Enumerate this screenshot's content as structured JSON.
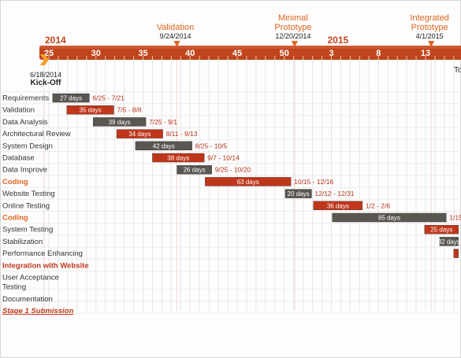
{
  "chart_data": {
    "type": "gantt",
    "timeline": {
      "years": [
        {
          "label": "2014",
          "week": 25
        },
        {
          "label": "2015",
          "week": 55
        }
      ],
      "ticks": [
        {
          "label": "25",
          "week": 25
        },
        {
          "label": "30",
          "week": 30
        },
        {
          "label": "35",
          "week": 35
        },
        {
          "label": "40",
          "week": 40
        },
        {
          "label": "45",
          "week": 45
        },
        {
          "label": "50",
          "week": 50
        },
        {
          "label": "3",
          "week": 55
        },
        {
          "label": "8",
          "week": 60
        },
        {
          "label": "13",
          "week": 65
        }
      ],
      "visible_range_weeks": [
        24.2,
        68.5
      ]
    },
    "milestones": [
      {
        "name": "Validation",
        "date": "9/24/2014",
        "week": 38.6
      },
      {
        "name": "Minimal\nPrototype",
        "date": "12/20/2014",
        "week": 51.1
      },
      {
        "name": "Integrated\nPrototype",
        "date": "4/1/2015",
        "week": 65.6
      }
    ],
    "start_marker": {
      "name": "Kick-Off",
      "date": "6/18/2014",
      "week": 24.4
    },
    "cutoff_label": "To",
    "tasks": [
      {
        "name": "Requirements",
        "duration": "27 days",
        "dates": "6/25 - 7/21",
        "start_week": 25.4,
        "end_week": 29.3,
        "color": "#5a5650",
        "phase": false
      },
      {
        "name": "Validation",
        "duration": "35 days",
        "dates": "7/5 - 8/8",
        "start_week": 26.9,
        "end_week": 31.9,
        "color": "#c0361a",
        "phase": false
      },
      {
        "name": "Data Analysis",
        "duration": "39 days",
        "dates": "7/25 - 9/1",
        "start_week": 29.7,
        "end_week": 35.3,
        "color": "#5a5650",
        "phase": false
      },
      {
        "name": "Architectural Review",
        "duration": "34 days",
        "dates": "8/11 - 9/13",
        "start_week": 32.2,
        "end_week": 37.1,
        "color": "#c0361a",
        "phase": false
      },
      {
        "name": "System Design",
        "duration": "42 days",
        "dates": "8/25 - 10/5",
        "start_week": 34.2,
        "end_week": 40.2,
        "color": "#5a5650",
        "phase": false
      },
      {
        "name": "Database",
        "duration": "38 days",
        "dates": "9/7 - 10/14",
        "start_week": 36.0,
        "end_week": 41.5,
        "color": "#c0361a",
        "phase": false
      },
      {
        "name": "Data Improve",
        "duration": "26 days",
        "dates": "9/25 - 10/20",
        "start_week": 38.6,
        "end_week": 42.3,
        "color": "#5a5650",
        "phase": false
      },
      {
        "name": "Coding",
        "duration": "63 days",
        "dates": "10/15 - 12/16",
        "start_week": 41.6,
        "end_week": 50.7,
        "color": "#c0361a",
        "phase": true
      },
      {
        "name": "Website Testing",
        "duration": "20 days",
        "dates": "12/12 - 12/31",
        "start_week": 50.1,
        "end_week": 52.9,
        "color": "#5a5650",
        "phase": false
      },
      {
        "name": "Online Testing",
        "duration": "36 days",
        "dates": "1/2 - 2/6",
        "start_week": 53.1,
        "end_week": 58.3,
        "color": "#c0361a",
        "phase": false
      },
      {
        "name": "Coding",
        "duration": "85 days",
        "dates": "1/15",
        "start_week": 55.1,
        "end_week": 67.2,
        "color": "#5a5650",
        "phase": true
      },
      {
        "name": "System Testing",
        "duration": "25 days",
        "dates": "",
        "start_week": 64.9,
        "end_week": 68.5,
        "color": "#c0361a",
        "phase": false
      },
      {
        "name": "Stabilization",
        "duration": "32 days",
        "dates": "",
        "start_week": 66.5,
        "end_week": 68.5,
        "color": "#5a5650",
        "phase": false
      },
      {
        "name": "Performance Enhancing",
        "duration": "",
        "dates": "",
        "start_week": 68.0,
        "end_week": 68.5,
        "color": "#c0361a",
        "phase": false
      },
      {
        "name": "Integration with Website",
        "duration": "",
        "dates": "",
        "start_week": null,
        "end_week": null,
        "color": "#c0361a",
        "phase": true
      },
      {
        "name": "User Acceptance\nTesting",
        "duration": "",
        "dates": "",
        "start_week": null,
        "end_week": null,
        "color": "#5a5650",
        "phase": false
      },
      {
        "name": "Documentation",
        "duration": "",
        "dates": "",
        "start_week": null,
        "end_week": null,
        "color": "#5a5650",
        "phase": false
      },
      {
        "name": "Stage 1 Submission",
        "duration": "",
        "dates": "",
        "start_week": null,
        "end_week": null,
        "color": "#c0361a",
        "phase": true,
        "style": "italic-underline"
      }
    ],
    "colors": {
      "axis_band": "#c0451d",
      "accent": "#e0641e",
      "dark_bar": "#5a5650",
      "red_bar": "#c0361a",
      "phase_text": "#e0641e",
      "label_text": "#333333"
    }
  }
}
